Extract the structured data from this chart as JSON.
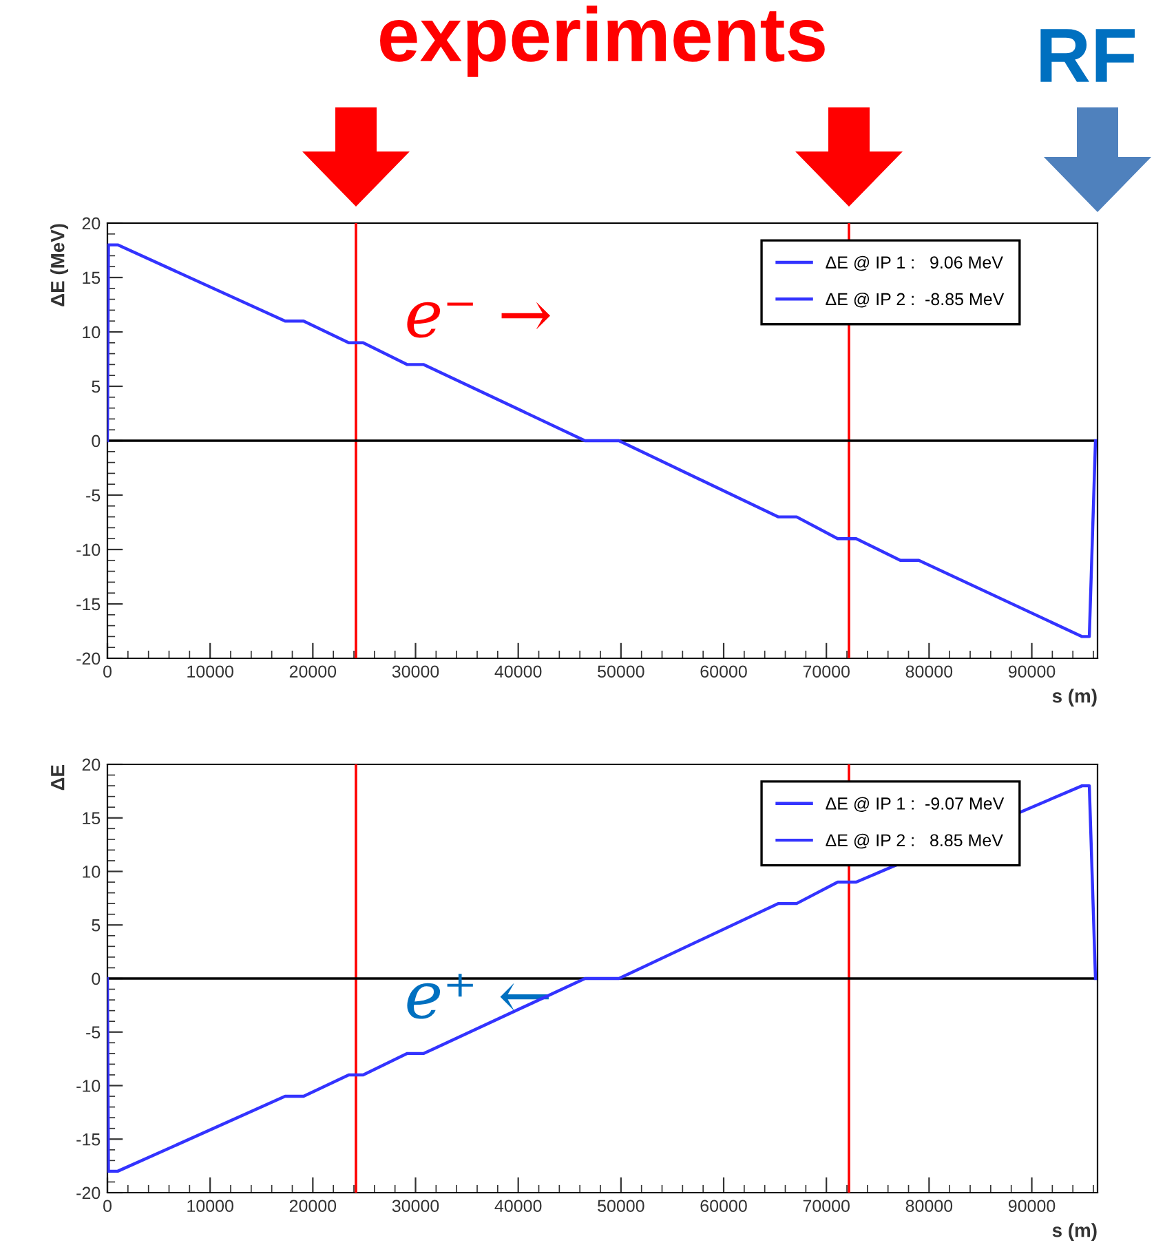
{
  "chart_data": [
    {
      "type": "line",
      "xlabel": "s (m)",
      "ylabel": "ΔE (MeV)",
      "xlim": [
        0,
        96400
      ],
      "ylim": [
        -20,
        20
      ],
      "xticks": [
        0,
        10000,
        20000,
        30000,
        40000,
        50000,
        60000,
        70000,
        80000,
        90000
      ],
      "yticks": [
        -20,
        -15,
        -10,
        -5,
        0,
        5,
        10,
        15,
        20
      ],
      "series": [
        {
          "color": "#3333ff",
          "x": [
            0,
            100,
            1000,
            17300,
            19100,
            23500,
            24900,
            29200,
            30800,
            46500,
            49800,
            65300,
            67100,
            71100,
            72900,
            77200,
            79000,
            94900,
            95600,
            96200
          ],
          "values": [
            0,
            18,
            18,
            11,
            11,
            9,
            9,
            7,
            7,
            0,
            0,
            -7,
            -7,
            -9,
            -9,
            -11,
            -11,
            -18,
            -18,
            0
          ]
        }
      ],
      "ref_lines": [
        {
          "axis": "x",
          "value": 24200,
          "color": "#ff0000"
        },
        {
          "axis": "x",
          "value": 72200,
          "color": "#ff0000"
        },
        {
          "axis": "y",
          "value": 0,
          "color": "#000000"
        }
      ],
      "annotations": [
        "experiments",
        "RF",
        "e⁻ →",
        "ΔE @ IP 1 :   9.06 MeV",
        "ΔE @ IP 2 :  -8.85 MeV"
      ],
      "grid": false,
      "line_style": "solid",
      "marker": "none"
    },
    {
      "type": "line",
      "xlabel": "s (m)",
      "ylabel": "ΔE",
      "xlim": [
        0,
        96400
      ],
      "ylim": [
        -20,
        20
      ],
      "xticks": [
        0,
        10000,
        20000,
        30000,
        40000,
        50000,
        60000,
        70000,
        80000,
        90000
      ],
      "yticks": [
        -20,
        -15,
        -10,
        -5,
        0,
        5,
        10,
        15,
        20
      ],
      "series": [
        {
          "color": "#3333ff",
          "x": [
            0,
            100,
            1000,
            17300,
            19100,
            23500,
            24900,
            29200,
            30800,
            46500,
            49800,
            65300,
            67100,
            71100,
            72900,
            94900,
            95600,
            96200
          ],
          "values": [
            0,
            -18,
            -18,
            -11,
            -11,
            -9,
            -9,
            -7,
            -7,
            0,
            0,
            7,
            7,
            9,
            9,
            18,
            18,
            0
          ]
        }
      ],
      "ref_lines": [
        {
          "axis": "x",
          "value": 24200,
          "color": "#ff0000"
        },
        {
          "axis": "x",
          "value": 72200,
          "color": "#ff0000"
        },
        {
          "axis": "y",
          "value": 0,
          "color": "#000000"
        }
      ],
      "annotations": [
        "e⁺ ←",
        "ΔE @ IP 1 :  -9.07 MeV",
        "ΔE @ IP 2 :   8.85 MeV"
      ],
      "grid": false,
      "line_style": "solid",
      "marker": "none"
    }
  ]
}
